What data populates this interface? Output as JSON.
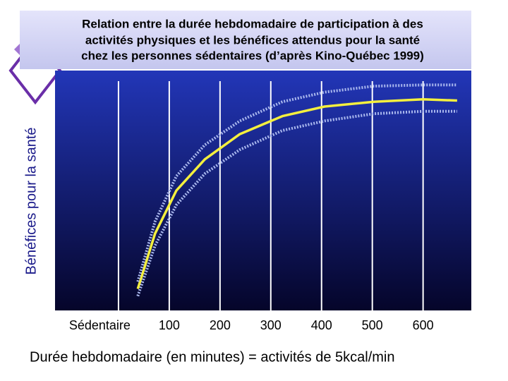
{
  "chart_data": {
    "type": "line",
    "title_lines": [
      "Relation entre la durée hebdomadaire de participation à des",
      "activités physiques et les bénéfices attendus pour la santé",
      "chez les personnes sédentaires (d’après Kino-Québec 1999)"
    ],
    "x_label": "Durée hebdomadaire (en minutes) = activités de 5kcal/min",
    "y_label": "Bénéfices pour la santé",
    "x": [
      38,
      72,
      114,
      170,
      239,
      323,
      406,
      503,
      600,
      667
    ],
    "series": [
      {
        "color": "#f4ef3e",
        "style": "solid",
        "values": [
          9,
          32,
          50,
          63,
          73.5,
          81,
          85,
          87,
          88,
          87.5
        ]
      },
      {
        "color": "#aab8ee",
        "style": "dotted",
        "values": [
          12,
          37,
          56,
          69,
          79,
          87,
          91,
          93.5,
          94,
          94
        ]
      },
      {
        "color": "#aab8ee",
        "style": "dotted",
        "values": [
          6,
          27,
          44,
          57,
          67,
          75,
          79,
          82,
          83,
          83
        ]
      }
    ],
    "xlim": [
      -125,
      695
    ],
    "ylim": [
      0,
      100
    ],
    "xticks": [
      {
        "value": 0,
        "label": "Sédentaire"
      },
      100,
      200,
      300,
      400,
      500,
      600
    ],
    "grid": true
  }
}
